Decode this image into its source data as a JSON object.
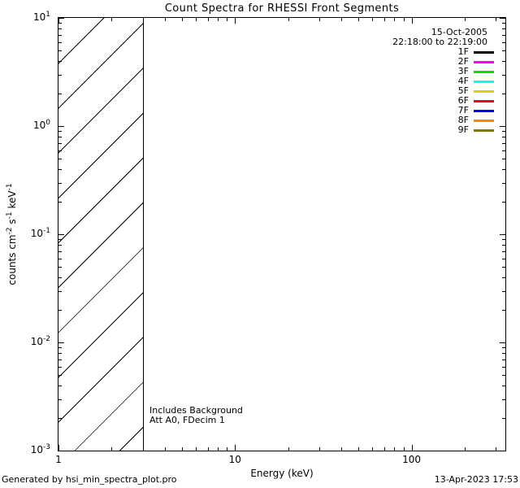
{
  "chart_data": {
    "type": "line",
    "title": "Count Spectra for RHESSI Front Segments",
    "xlabel": "Energy (keV)",
    "ylabel_segments": [
      {
        "text": "counts cm"
      },
      {
        "sup": "-2"
      },
      {
        "text": " s"
      },
      {
        "sup": "-1"
      },
      {
        "text": " keV"
      },
      {
        "sup": "-1"
      }
    ],
    "xscale": "log",
    "yscale": "log",
    "xlim": [
      1,
      340
    ],
    "ylim": [
      0.001,
      10
    ],
    "grid": false,
    "legend_position": "top-right",
    "x_major_ticks": [
      {
        "value": 1,
        "label": "1"
      },
      {
        "value": 10,
        "label": "10"
      },
      {
        "value": 100,
        "label": "100"
      }
    ],
    "x_minor_ticks": [
      2,
      3,
      4,
      5,
      6,
      7,
      8,
      9,
      20,
      30,
      40,
      50,
      60,
      70,
      80,
      90,
      200,
      300
    ],
    "y_major_ticks": [
      {
        "value": 10,
        "mantissa": "10",
        "exponent": "1"
      },
      {
        "value": 1,
        "mantissa": "10",
        "exponent": "0"
      },
      {
        "value": 0.1,
        "mantissa": "10",
        "exponent": "-1"
      },
      {
        "value": 0.01,
        "mantissa": "10",
        "exponent": "-2"
      },
      {
        "value": 0.001,
        "mantissa": "10",
        "exponent": "-3"
      }
    ],
    "y_minor_ticks": [
      0.002,
      0.003,
      0.004,
      0.005,
      0.006,
      0.007,
      0.008,
      0.009,
      0.02,
      0.03,
      0.04,
      0.05,
      0.06,
      0.07,
      0.08,
      0.09,
      0.2,
      0.3,
      0.4,
      0.5,
      0.6,
      0.7,
      0.8,
      0.9,
      2,
      3,
      4,
      5,
      6,
      7,
      8,
      9
    ],
    "hatched_region": {
      "x_start": 1,
      "x_end": 3,
      "style": "diagonal-lines-45deg"
    },
    "series": [
      {
        "name": "1F",
        "color": "#000000",
        "values": []
      },
      {
        "name": "2F",
        "color": "#ff00ff",
        "values": []
      },
      {
        "name": "3F",
        "color": "#00e000",
        "values": []
      },
      {
        "name": "4F",
        "color": "#00ffff",
        "values": []
      },
      {
        "name": "5F",
        "color": "#d8d400",
        "values": []
      },
      {
        "name": "6F",
        "color": "#ff0000",
        "values": []
      },
      {
        "name": "7F",
        "color": "#0000ff",
        "values": []
      },
      {
        "name": "8F",
        "color": "#ff8400",
        "values": []
      },
      {
        "name": "9F",
        "color": "#807a00",
        "values": []
      }
    ]
  },
  "legend": {
    "date": "15-Oct-2005",
    "time_range": "22:18:00 to 22:19:00",
    "entries": [
      {
        "label": "1F",
        "color": "#000000"
      },
      {
        "label": "2F",
        "color": "#ff00ff"
      },
      {
        "label": "3F",
        "color": "#00e000"
      },
      {
        "label": "4F",
        "color": "#00ffff"
      },
      {
        "label": "5F",
        "color": "#d8d400"
      },
      {
        "label": "6F",
        "color": "#ff0000"
      },
      {
        "label": "7F",
        "color": "#0000ff"
      },
      {
        "label": "8F",
        "color": "#ff8400"
      },
      {
        "label": "9F",
        "color": "#807a00"
      }
    ]
  },
  "annotations": {
    "line1": "Includes Background",
    "line2": "Att A0, FDecim 1"
  },
  "footer": {
    "left": "Generated by hsi_min_spectra_plot.pro",
    "right": "13-Apr-2023 17:53"
  },
  "colors": {
    "foreground": "#000000",
    "background": "#ffffff"
  }
}
